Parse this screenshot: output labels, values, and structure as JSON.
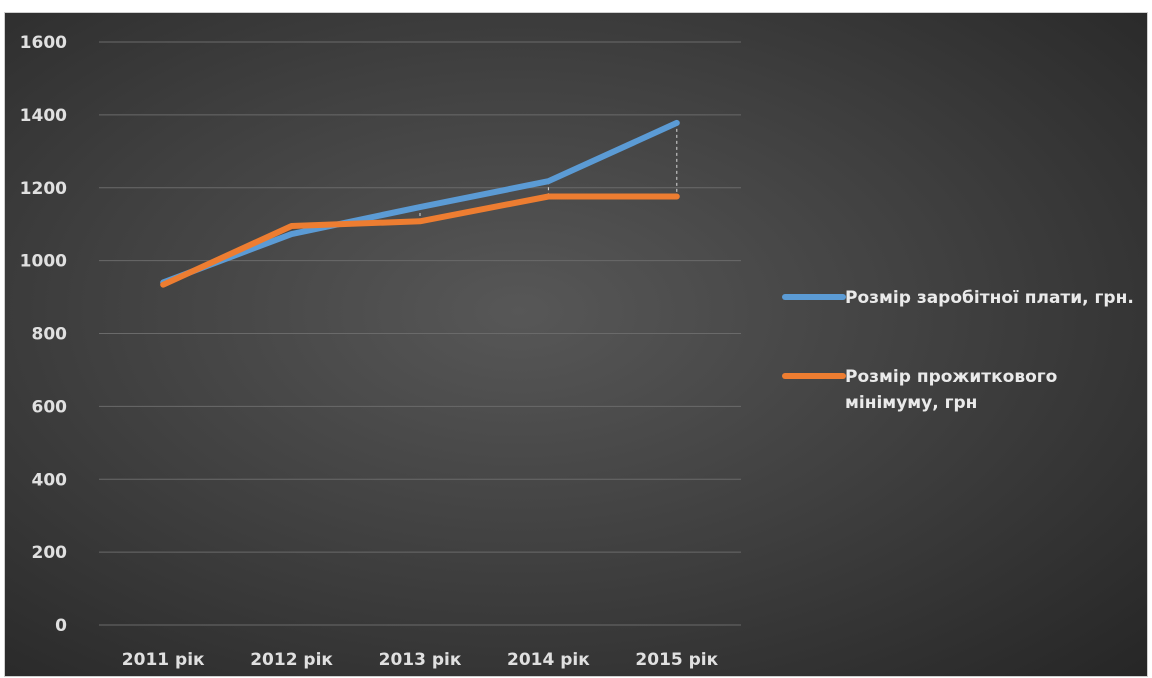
{
  "chart_data": {
    "type": "line",
    "title": "",
    "xlabel": "",
    "ylabel": "",
    "categories": [
      "2011 рік",
      "2012 рік",
      "2013 рік",
      "2014 рік",
      "2015 рік"
    ],
    "ylim": [
      0,
      1600
    ],
    "yticks": [
      0,
      200,
      400,
      600,
      800,
      1000,
      1200,
      1400,
      1600
    ],
    "grid": true,
    "legend_position": "right",
    "drop_lines": true,
    "series": [
      {
        "name": "Розмір заробітної плати, грн.",
        "legend_lines": [
          "Розмір заробітної плати, грн."
        ],
        "color": "#5b9bd5",
        "values": [
          940,
          1073,
          1147,
          1218,
          1378
        ]
      },
      {
        "name": "Розмір прожиткового мінімуму, грн",
        "legend_lines": [
          "Розмір прожиткового",
          "мінімуму, грн"
        ],
        "color": "#ed7d31",
        "values": [
          934,
          1095,
          1108,
          1176,
          1176
        ]
      }
    ]
  }
}
